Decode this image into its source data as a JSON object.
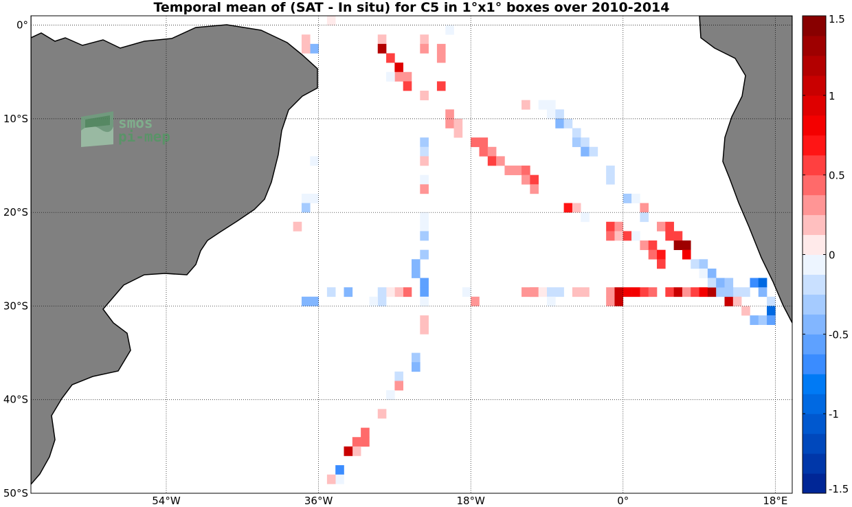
{
  "title": "Temporal mean of (SAT - In situ) for C5 in 1°x1° boxes over 2010-2014",
  "watermark": {
    "line1": "smos",
    "line2": "pi-mep"
  },
  "map": {
    "lon_range": [
      -70,
      20
    ],
    "lat_range": [
      -50,
      1
    ],
    "lon_ticks": [
      {
        "value": -54,
        "label": "54°W"
      },
      {
        "value": -36,
        "label": "36°W"
      },
      {
        "value": -18,
        "label": "18°W"
      },
      {
        "value": 0,
        "label": "0°"
      },
      {
        "value": 18,
        "label": "18°E"
      }
    ],
    "lat_ticks": [
      {
        "value": 0,
        "label": "0°"
      },
      {
        "value": -10,
        "label": "10°S"
      },
      {
        "value": -20,
        "label": "20°S"
      },
      {
        "value": -30,
        "label": "30°S"
      },
      {
        "value": -40,
        "label": "40°S"
      },
      {
        "value": -50,
        "label": "50°S"
      }
    ],
    "grid": "dotted",
    "land_color": "#808080"
  },
  "colorbar": {
    "range": [
      -1.5,
      1.5
    ],
    "ticks": [
      {
        "value": 1.5,
        "label": "1.5"
      },
      {
        "value": 1,
        "label": "1"
      },
      {
        "value": 0.5,
        "label": "0.5"
      },
      {
        "value": 0,
        "label": "0"
      },
      {
        "value": -0.5,
        "label": "-0.5"
      },
      {
        "value": -1,
        "label": "-1"
      },
      {
        "value": -1.5,
        "label": "-1.5"
      }
    ],
    "colormap": "blue-white-red"
  },
  "chart_data": {
    "type": "heatmap",
    "title": "Temporal mean of (SAT - In situ) for C5 in 1°x1° boxes over 2010-2014",
    "xlabel": "",
    "ylabel": "",
    "x_unit": "longitude (deg)",
    "y_unit": "latitude (deg)",
    "cells": [
      [
        -37.5,
        -1.5,
        0.2
      ],
      [
        -36.5,
        -2.5,
        -0.4
      ],
      [
        -37.5,
        -2.5,
        0.2
      ],
      [
        -34.5,
        0.5,
        0.1
      ],
      [
        -28.5,
        -1.5,
        0.2
      ],
      [
        -28.5,
        -2.5,
        1.2
      ],
      [
        -27.5,
        -3.5,
        0.5
      ],
      [
        -26.5,
        -4.5,
        0.9
      ],
      [
        -26.5,
        -5.5,
        0.3
      ],
      [
        -25.5,
        -5.5,
        0.3
      ],
      [
        -27.5,
        -5.5,
        -0.1
      ],
      [
        -25.5,
        -6.5,
        0.5
      ],
      [
        -23.5,
        -1.5,
        0.2
      ],
      [
        -23.5,
        -2.5,
        0.3
      ],
      [
        -21.5,
        -2.5,
        0.3
      ],
      [
        -21.5,
        -3.5,
        0.3
      ],
      [
        -20.5,
        -0.5,
        -0.1
      ],
      [
        -23.5,
        -7.5,
        0.2
      ],
      [
        -21.5,
        -6.5,
        0.5
      ],
      [
        -20.5,
        -9.5,
        0.3
      ],
      [
        -20.5,
        -10.5,
        0.3
      ],
      [
        -19.5,
        -10.5,
        0.2
      ],
      [
        -19.5,
        -11.5,
        0.2
      ],
      [
        -23.5,
        -12.5,
        -0.3
      ],
      [
        -23.5,
        -13.5,
        -0.2
      ],
      [
        -23.5,
        -14.5,
        0.2
      ],
      [
        -23.5,
        -16.5,
        -0.1
      ],
      [
        -23.5,
        -17.5,
        0.3
      ],
      [
        -36.5,
        -14.5,
        -0.1
      ],
      [
        -36.5,
        -18.5,
        -0.1
      ],
      [
        -37.5,
        -18.5,
        -0.1
      ],
      [
        -37.5,
        -19.5,
        -0.3
      ],
      [
        -38.5,
        -21.5,
        0.2
      ],
      [
        -23.5,
        -20.5,
        -0.1
      ],
      [
        -23.5,
        -21.5,
        -0.1
      ],
      [
        -23.5,
        -22.5,
        -0.3
      ],
      [
        -23.5,
        -24.5,
        -0.3
      ],
      [
        -24.5,
        -25.5,
        -0.5
      ],
      [
        -24.5,
        -26.5,
        -0.5
      ],
      [
        -23.5,
        -27.5,
        -0.6
      ],
      [
        -23.5,
        -28.5,
        -0.6
      ],
      [
        -25.5,
        -28.5,
        0.4
      ],
      [
        -26.5,
        -28.5,
        0.2
      ],
      [
        -27.5,
        -28.5,
        0.1
      ],
      [
        -28.5,
        -28.5,
        -0.2
      ],
      [
        -28.5,
        -29.5,
        -0.2
      ],
      [
        -29.5,
        -29.5,
        -0.1
      ],
      [
        -23.5,
        -29.5,
        -0.1
      ],
      [
        -23.5,
        -31.5,
        0.2
      ],
      [
        -23.5,
        -32.5,
        0.2
      ],
      [
        -24.5,
        -35.5,
        -0.3
      ],
      [
        -24.5,
        -36.5,
        -0.4
      ],
      [
        -26.5,
        -37.5,
        -0.2
      ],
      [
        -26.5,
        -38.5,
        0.3
      ],
      [
        -27.5,
        -39.5,
        -0.1
      ],
      [
        -28.5,
        -41.5,
        0.2
      ],
      [
        -30.5,
        -43.5,
        0.4
      ],
      [
        -30.5,
        -44.5,
        0.4
      ],
      [
        -31.5,
        -44.5,
        0.4
      ],
      [
        -31.5,
        -45.5,
        0.2
      ],
      [
        -32.5,
        -45.5,
        1.0
      ],
      [
        -33.5,
        -47.5,
        -0.7
      ],
      [
        -33.5,
        -48.5,
        -0.1
      ],
      [
        -34.5,
        -48.5,
        0.2
      ],
      [
        -36.5,
        -29.5,
        -0.4
      ],
      [
        -37.5,
        -29.5,
        -0.4
      ],
      [
        -34.5,
        -28.5,
        -0.2
      ],
      [
        -32.5,
        -28.5,
        -0.4
      ],
      [
        -18.5,
        -28.5,
        -0.1
      ],
      [
        -17.5,
        -29.5,
        0.3
      ],
      [
        -10.5,
        -28.5,
        0.3
      ],
      [
        -11.5,
        -28.5,
        0.3
      ],
      [
        -10.5,
        -28.5,
        0.3
      ],
      [
        -9.5,
        -28.5,
        0.1
      ],
      [
        -8.5,
        -28.5,
        -0.2
      ],
      [
        -7.5,
        -28.5,
        -0.2
      ],
      [
        -8.5,
        -29.5,
        -0.1
      ],
      [
        -5.5,
        -28.5,
        0.2
      ],
      [
        -4.5,
        -28.5,
        0.2
      ],
      [
        -1.5,
        -28.5,
        0.3
      ],
      [
        -1.5,
        -29.5,
        0.3
      ],
      [
        -0.5,
        -28.5,
        1.0
      ],
      [
        -0.5,
        -29.5,
        1.0
      ],
      [
        0.5,
        -28.5,
        0.8
      ],
      [
        1.5,
        -28.5,
        0.8
      ],
      [
        2.5,
        -28.5,
        0.6
      ],
      [
        3.5,
        -28.5,
        0.4
      ],
      [
        5.5,
        -28.5,
        0.5
      ],
      [
        6.5,
        -28.5,
        1.0
      ],
      [
        7.5,
        -28.5,
        0.3
      ],
      [
        8.5,
        -28.5,
        0.6
      ],
      [
        9.5,
        -28.5,
        0.8
      ],
      [
        10.5,
        -28.5,
        1.2
      ],
      [
        11.5,
        -28.5,
        -0.3
      ],
      [
        12.5,
        -29.5,
        1.1
      ],
      [
        13.5,
        -28.5,
        -0.2
      ],
      [
        13.5,
        -29.5,
        0.2
      ],
      [
        14.5,
        -28.5,
        -0.2
      ],
      [
        14.5,
        -30.5,
        0.2
      ],
      [
        15.5,
        -27.5,
        -0.7
      ],
      [
        16.5,
        -27.5,
        -1.0
      ],
      [
        16.5,
        -28.5,
        -0.5
      ],
      [
        15.5,
        -31.5,
        -0.5
      ],
      [
        16.5,
        -31.5,
        -0.3
      ],
      [
        17.5,
        -29.5,
        -0.2
      ],
      [
        17.5,
        -30.5,
        -0.9
      ],
      [
        17.5,
        -31.5,
        -0.6
      ],
      [
        -11.5,
        -8.5,
        0.2
      ],
      [
        -9.5,
        -8.5,
        -0.1
      ],
      [
        -8.5,
        -8.5,
        -0.1
      ],
      [
        -8.5,
        -9.5,
        -0.1
      ],
      [
        -7.5,
        -9.5,
        -0.2
      ],
      [
        -7.5,
        -10.5,
        -0.4
      ],
      [
        -6.5,
        -10.5,
        -0.2
      ],
      [
        -5.5,
        -11.5,
        -0.2
      ],
      [
        -5.5,
        -12.5,
        -0.3
      ],
      [
        -4.5,
        -12.5,
        -0.2
      ],
      [
        -4.5,
        -13.5,
        -0.4
      ],
      [
        -3.5,
        -13.5,
        -0.2
      ],
      [
        -1.5,
        -15.5,
        -0.2
      ],
      [
        -1.5,
        -16.5,
        -0.2
      ],
      [
        -17.5,
        -12.5,
        0.4
      ],
      [
        -16.5,
        -12.5,
        0.4
      ],
      [
        -16.5,
        -13.5,
        0.4
      ],
      [
        -15.5,
        -13.5,
        0.3
      ],
      [
        -15.5,
        -14.5,
        0.6
      ],
      [
        -14.5,
        -14.5,
        0.3
      ],
      [
        -13.5,
        -15.5,
        0.3
      ],
      [
        -12.5,
        -15.5,
        0.3
      ],
      [
        -11.5,
        -15.5,
        0.4
      ],
      [
        -11.5,
        -16.5,
        0.3
      ],
      [
        -10.5,
        -16.5,
        0.5
      ],
      [
        -10.5,
        -17.5,
        0.3
      ],
      [
        -6.5,
        -19.5,
        0.7
      ],
      [
        -5.5,
        -19.5,
        0.2
      ],
      [
        -4.5,
        -20.5,
        -0.1
      ],
      [
        0.5,
        -18.5,
        -0.3
      ],
      [
        1.5,
        -18.5,
        -0.1
      ],
      [
        2.5,
        -19.5,
        0.3
      ],
      [
        2.5,
        -20.5,
        -0.2
      ],
      [
        -1.5,
        -21.5,
        0.5
      ],
      [
        -0.5,
        -21.5,
        0.3
      ],
      [
        -1.5,
        -22.5,
        0.4
      ],
      [
        -0.5,
        -22.5,
        0.2
      ],
      [
        0.5,
        -22.5,
        0.5
      ],
      [
        1.5,
        -22.5,
        -0.1
      ],
      [
        2.5,
        -23.5,
        0.3
      ],
      [
        3.5,
        -23.5,
        0.6
      ],
      [
        3.5,
        -24.5,
        0.4
      ],
      [
        4.5,
        -21.5,
        0.3
      ],
      [
        4.5,
        -24.5,
        0.7
      ],
      [
        4.5,
        -25.5,
        0.5
      ],
      [
        5.5,
        -21.5,
        0.5
      ],
      [
        5.5,
        -22.5,
        0.6
      ],
      [
        6.5,
        -22.5,
        0.6
      ],
      [
        6.5,
        -23.5,
        1.3
      ],
      [
        7.5,
        -23.5,
        1.3
      ],
      [
        7.5,
        -24.5,
        0.8
      ],
      [
        8.5,
        -25.5,
        -0.2
      ],
      [
        9.5,
        -25.5,
        -0.3
      ],
      [
        9.5,
        -26.5,
        -0.1
      ],
      [
        10.5,
        -26.5,
        -0.4
      ],
      [
        10.5,
        -27.5,
        -0.2
      ],
      [
        11.5,
        -27.5,
        -0.4
      ],
      [
        12.5,
        -27.5,
        -0.3
      ],
      [
        12.5,
        -28.5,
        -0.3
      ]
    ]
  }
}
